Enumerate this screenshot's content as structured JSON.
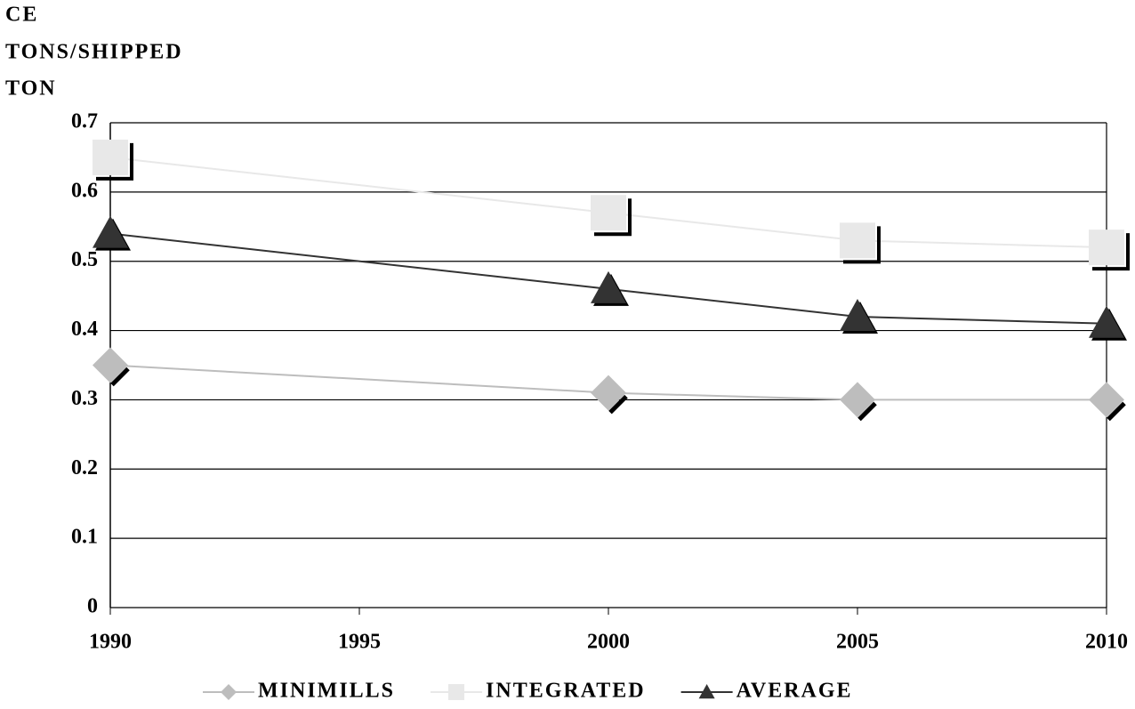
{
  "chart_data": {
    "type": "line",
    "ylabel": [
      "CE",
      "TONS/SHIPPED",
      "TON"
    ],
    "x": [
      1990,
      2000,
      2005,
      2010
    ],
    "series": [
      {
        "name": "MINIMILLS",
        "color": "#bdbdbd",
        "marker": "diamond",
        "values": [
          0.35,
          0.31,
          0.3,
          0.3
        ]
      },
      {
        "name": "INTEGRATED",
        "color": "#e8e8e8",
        "marker": "square",
        "values": [
          0.65,
          0.57,
          0.53,
          0.52
        ]
      },
      {
        "name": "AVERAGE",
        "color": "#333333",
        "marker": "triangle",
        "values": [
          0.54,
          0.46,
          0.42,
          0.41
        ]
      }
    ],
    "xlim": [
      1990,
      2010
    ],
    "xticks": [
      1990,
      1995,
      2000,
      2005,
      2010
    ],
    "ylim": [
      0,
      0.7
    ],
    "yticks": [
      0,
      0.1,
      0.2,
      0.3,
      0.4,
      0.5,
      0.6,
      0.7
    ],
    "grid": true,
    "legend": "bottom"
  }
}
